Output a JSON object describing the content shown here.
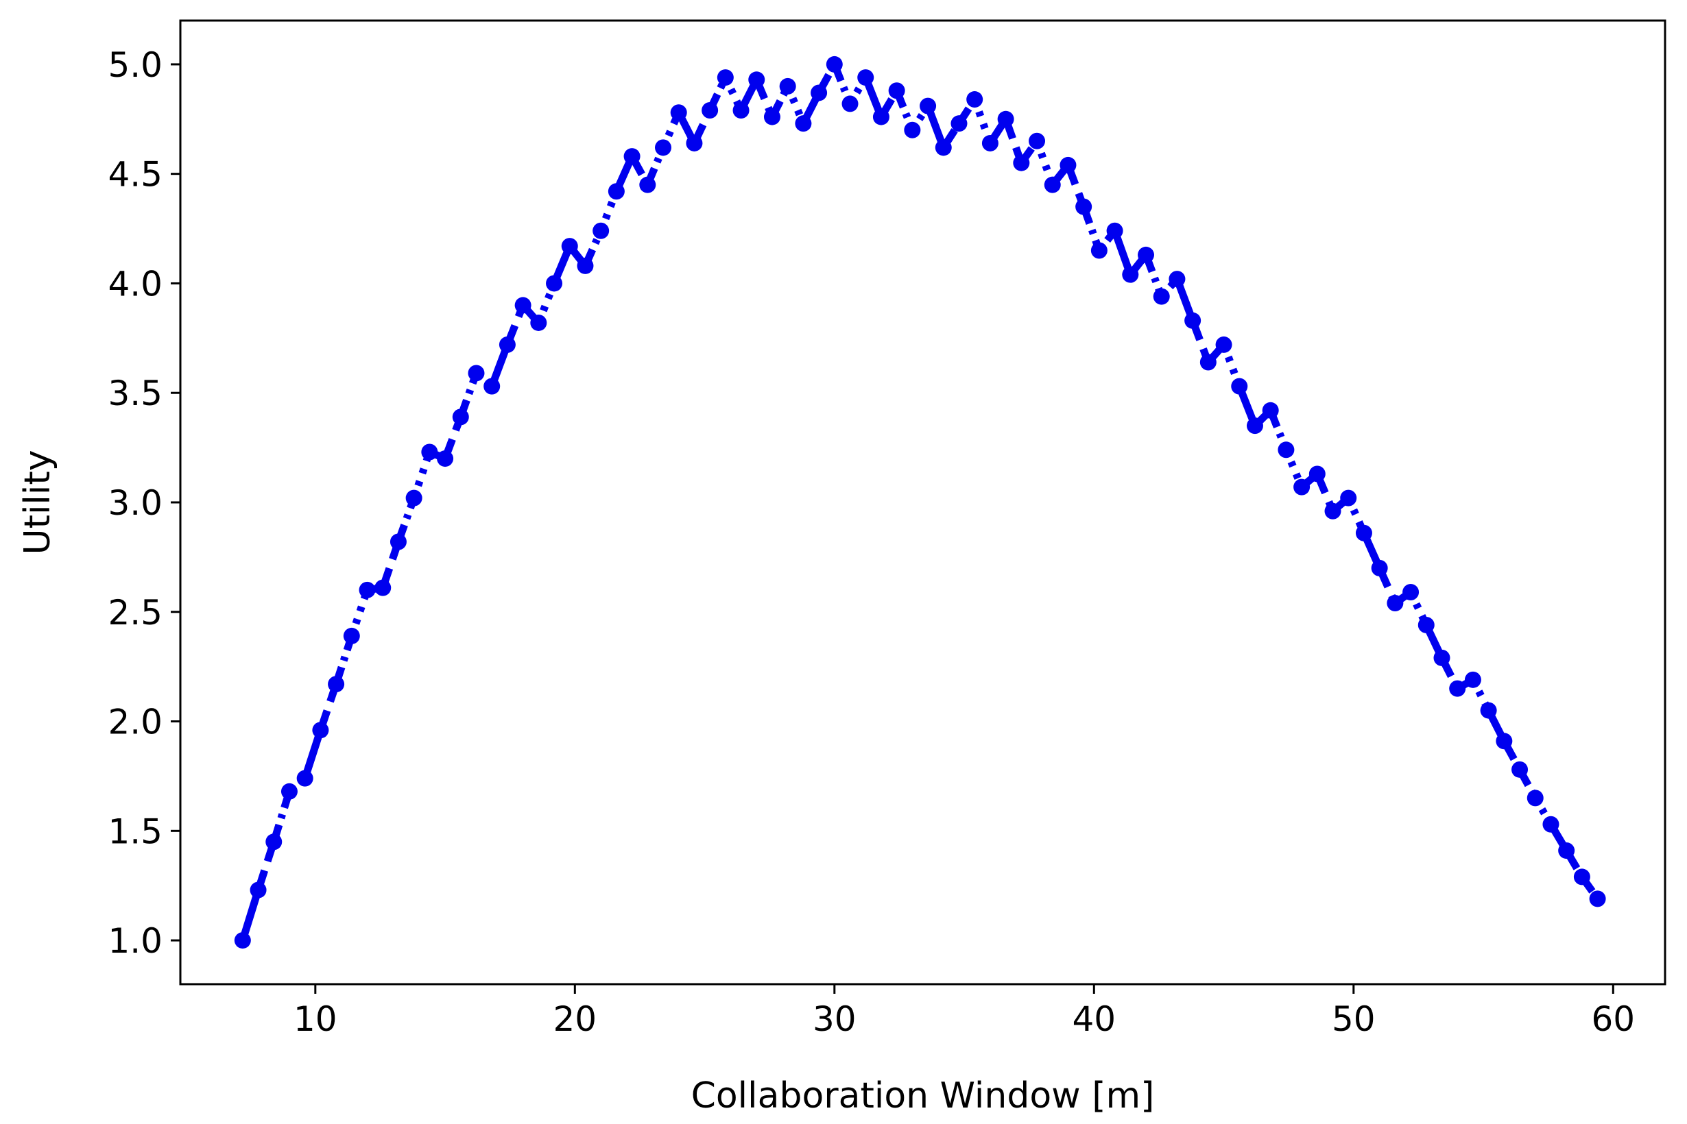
{
  "chart_data": {
    "type": "line",
    "title": "",
    "xlabel": "Collaboration Window [m]",
    "ylabel": "Utility",
    "xlim": [
      4.8,
      62
    ],
    "ylim": [
      0.8,
      5.2
    ],
    "xticks": [
      10,
      20,
      30,
      40,
      50,
      60
    ],
    "xtick_labels": [
      "10",
      "20",
      "30",
      "40",
      "50",
      "60"
    ],
    "yticks": [
      1.0,
      1.5,
      2.0,
      2.5,
      3.0,
      3.5,
      4.0,
      4.5,
      5.0
    ],
    "ytick_labels": [
      "1.0",
      "1.5",
      "2.0",
      "2.5",
      "3.0",
      "3.5",
      "4.0",
      "4.5",
      "5.0"
    ],
    "grid": false,
    "legend": "none",
    "series": [
      {
        "color": "#0000ee",
        "line_style": "mixed solid, dashed, dash-dot and dotted segments",
        "marker": "circle",
        "x": [
          7.2,
          7.8,
          8.4,
          9.0,
          9.6,
          10.2,
          10.8,
          11.4,
          12.0,
          12.6,
          13.2,
          13.8,
          14.4,
          15.0,
          15.6,
          16.2,
          16.8,
          17.4,
          18.0,
          18.6,
          19.2,
          19.8,
          20.4,
          21.0,
          21.6,
          22.2,
          22.8,
          23.4,
          24.0,
          24.6,
          25.2,
          25.8,
          26.4,
          27.0,
          27.6,
          28.2,
          28.8,
          29.4,
          30.0,
          30.6,
          31.2,
          31.8,
          32.4,
          33.0,
          33.6,
          34.2,
          34.8,
          35.4,
          36.0,
          36.6,
          37.2,
          37.8,
          38.4,
          39.0,
          39.6,
          40.2,
          40.8,
          41.4,
          42.0,
          42.6,
          43.2,
          43.8,
          44.4,
          45.0,
          45.6,
          46.2,
          46.8,
          47.4,
          48.0,
          48.6,
          49.2,
          49.8,
          50.4,
          51.0,
          51.6,
          52.2,
          52.8,
          53.4,
          54.0,
          54.6,
          55.2,
          55.8,
          56.4,
          57.0,
          57.6,
          58.2,
          58.8,
          59.4
        ],
        "y": [
          1.0,
          1.23,
          1.45,
          1.68,
          1.74,
          1.96,
          2.17,
          2.39,
          2.6,
          2.61,
          2.82,
          3.02,
          3.23,
          3.2,
          3.39,
          3.59,
          3.53,
          3.72,
          3.9,
          3.82,
          4.0,
          4.17,
          4.08,
          4.24,
          4.42,
          4.58,
          4.45,
          4.62,
          4.78,
          4.64,
          4.79,
          4.94,
          4.79,
          4.93,
          4.76,
          4.9,
          4.73,
          4.87,
          5.0,
          4.82,
          4.94,
          4.76,
          4.88,
          4.7,
          4.81,
          4.62,
          4.73,
          4.84,
          4.64,
          4.75,
          4.55,
          4.65,
          4.45,
          4.54,
          4.35,
          4.15,
          4.24,
          4.04,
          4.13,
          3.94,
          4.02,
          3.83,
          3.64,
          3.72,
          3.53,
          3.35,
          3.42,
          3.24,
          3.07,
          3.13,
          2.96,
          3.02,
          2.86,
          2.7,
          2.54,
          2.59,
          2.44,
          2.29,
          2.15,
          2.19,
          2.05,
          1.91,
          1.78,
          1.65,
          1.53,
          1.41,
          1.29,
          1.19
        ]
      }
    ]
  }
}
